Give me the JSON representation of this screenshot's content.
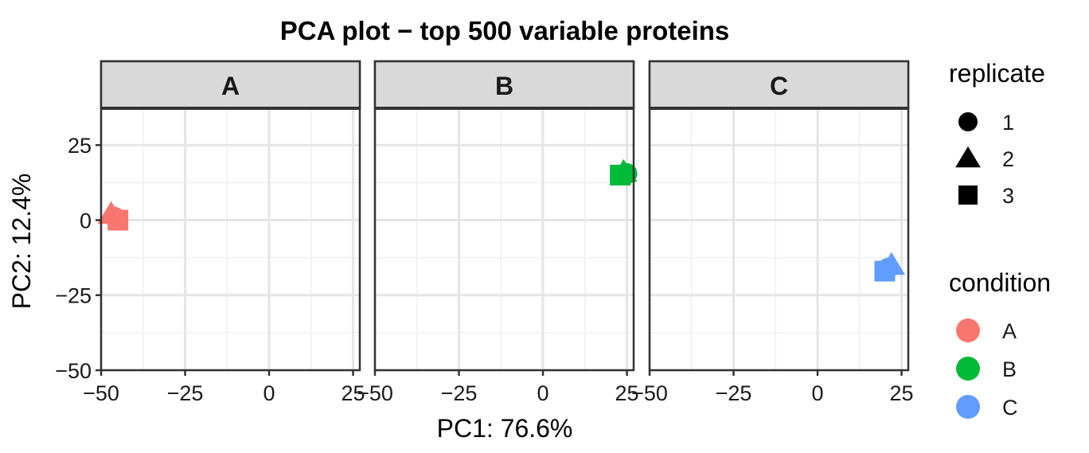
{
  "chart_data": {
    "type": "scatter",
    "title": "PCA plot − top 500 variable proteins",
    "xlabel": "PC1: 76.6%",
    "ylabel": "PC2: 12.4%",
    "xlim": [
      -50,
      27
    ],
    "ylim": [
      -50,
      37
    ],
    "x_ticks": [
      -50,
      -25,
      0,
      25
    ],
    "x_tick_labels": [
      "−50",
      "−25",
      "0",
      "25"
    ],
    "y_ticks": [
      -50,
      -25,
      0,
      25
    ],
    "y_tick_labels": [
      "−50",
      "−25",
      "0",
      "25"
    ],
    "grid": true,
    "facets": [
      "A",
      "B",
      "C"
    ],
    "legend_position": "right",
    "legends": {
      "replicate": {
        "title": "replicate",
        "items": [
          {
            "label": "1",
            "shape": "circle"
          },
          {
            "label": "2",
            "shape": "triangle"
          },
          {
            "label": "3",
            "shape": "square"
          }
        ]
      },
      "condition": {
        "title": "condition",
        "items": [
          {
            "label": "A",
            "color": "#F8766D"
          },
          {
            "label": "B",
            "color": "#00BA38"
          },
          {
            "label": "C",
            "color": "#619CFF"
          }
        ]
      }
    },
    "points": [
      {
        "facet": "A",
        "condition": "A",
        "replicate": "1",
        "x": -46,
        "y": 1
      },
      {
        "facet": "A",
        "condition": "A",
        "replicate": "2",
        "x": -47,
        "y": 2
      },
      {
        "facet": "A",
        "condition": "A",
        "replicate": "3",
        "x": -45,
        "y": 0
      },
      {
        "facet": "B",
        "condition": "B",
        "replicate": "1",
        "x": 25,
        "y": 15.5
      },
      {
        "facet": "B",
        "condition": "B",
        "replicate": "2",
        "x": 24,
        "y": 16
      },
      {
        "facet": "B",
        "condition": "B",
        "replicate": "3",
        "x": 23,
        "y": 15
      },
      {
        "facet": "C",
        "condition": "C",
        "replicate": "1",
        "x": 21,
        "y": -16
      },
      {
        "facet": "C",
        "condition": "C",
        "replicate": "2",
        "x": 22,
        "y": -15
      },
      {
        "facet": "C",
        "condition": "C",
        "replicate": "3",
        "x": 20,
        "y": -17
      }
    ]
  }
}
